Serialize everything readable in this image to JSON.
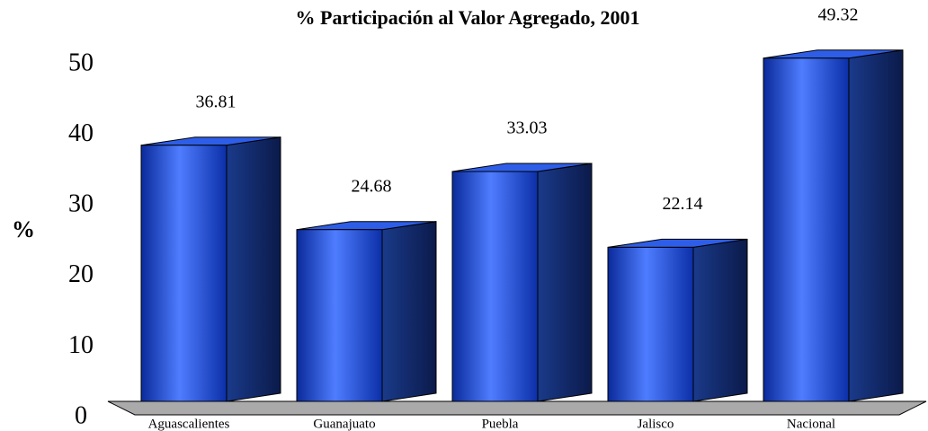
{
  "chart_data": {
    "type": "bar3d",
    "title": "% Participación al Valor Agregado, 2001",
    "y_label": "%",
    "categories": [
      "Aguascalientes",
      "Guanajuato",
      "Puebla",
      "Jalisco",
      "Nacional"
    ],
    "values": [
      36.81,
      24.68,
      33.03,
      22.14,
      49.32
    ],
    "color": "#1f4fd8",
    "ylim": [
      0,
      50
    ],
    "yticks": [
      0,
      10,
      20,
      30,
      40,
      50
    ]
  }
}
